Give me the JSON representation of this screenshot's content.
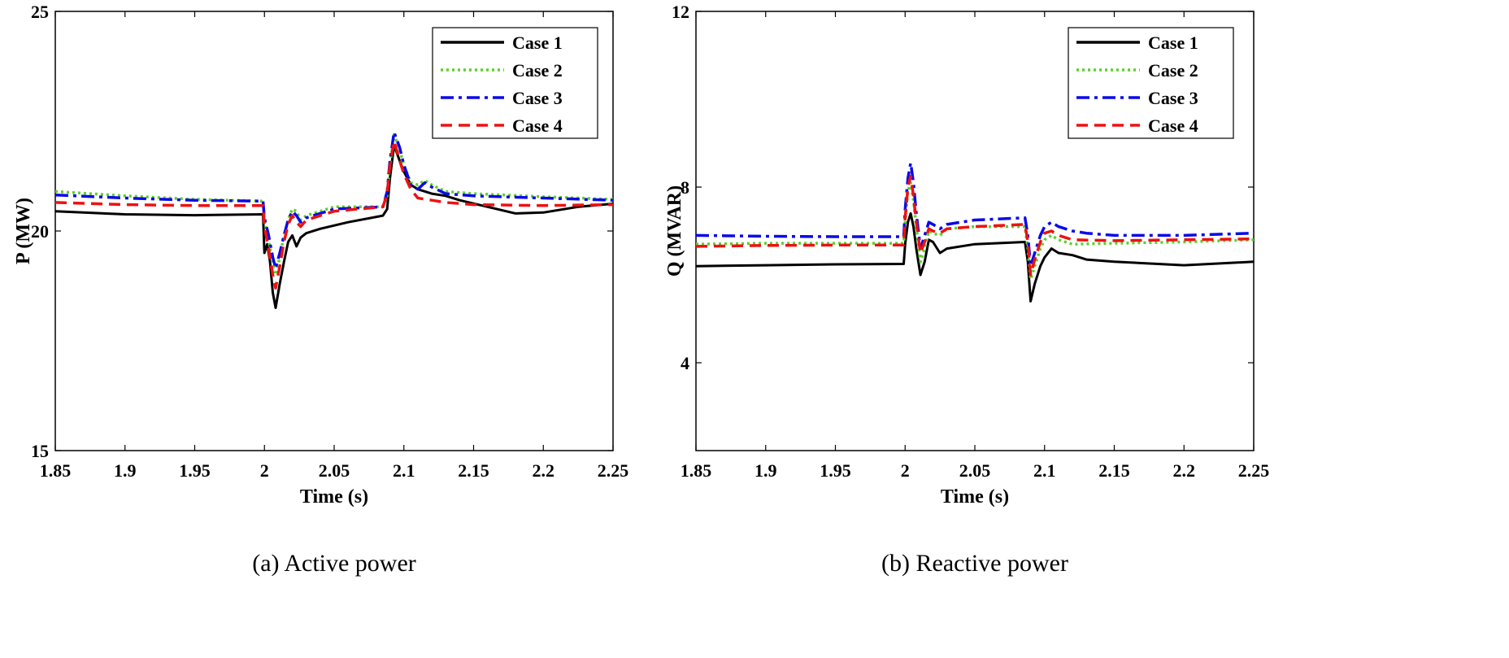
{
  "chart_data": [
    {
      "type": "line",
      "caption": "(a) Active power",
      "xlabel": "Time (s)",
      "ylabel": "P (MW)",
      "xlim": [
        1.85,
        2.25
      ],
      "ylim": [
        15,
        25
      ],
      "xticks": [
        1.85,
        1.9,
        1.95,
        2,
        2.05,
        2.1,
        2.15,
        2.2,
        2.25
      ],
      "xtick_labels": [
        "1.85",
        "1.9",
        "1.95",
        "2",
        "2.05",
        "2.1",
        "2.15",
        "2.2",
        "2.25"
      ],
      "yticks": [
        15,
        20,
        25
      ],
      "ytick_labels": [
        "15",
        "20",
        "25"
      ],
      "legend": "top-right",
      "series": [
        {
          "name": "Case 1",
          "color": "#000000",
          "style": "solid",
          "points": [
            [
              1.85,
              20.45
            ],
            [
              1.9,
              20.38
            ],
            [
              1.95,
              20.36
            ],
            [
              1.999,
              20.38
            ],
            [
              2.0,
              19.5
            ],
            [
              2.002,
              19.7
            ],
            [
              2.004,
              19.3
            ],
            [
              2.006,
              18.6
            ],
            [
              2.008,
              18.25
            ],
            [
              2.011,
              18.8
            ],
            [
              2.014,
              19.3
            ],
            [
              2.017,
              19.75
            ],
            [
              2.02,
              19.9
            ],
            [
              2.023,
              19.65
            ],
            [
              2.026,
              19.85
            ],
            [
              2.03,
              19.95
            ],
            [
              2.04,
              20.05
            ],
            [
              2.06,
              20.2
            ],
            [
              2.085,
              20.35
            ],
            [
              2.088,
              20.5
            ],
            [
              2.09,
              21.2
            ],
            [
              2.093,
              21.95
            ],
            [
              2.097,
              21.6
            ],
            [
              2.1,
              21.35
            ],
            [
              2.105,
              21.05
            ],
            [
              2.11,
              20.95
            ],
            [
              2.12,
              20.85
            ],
            [
              2.13,
              20.8
            ],
            [
              2.14,
              20.7
            ],
            [
              2.16,
              20.55
            ],
            [
              2.18,
              20.4
            ],
            [
              2.2,
              20.42
            ],
            [
              2.225,
              20.55
            ],
            [
              2.25,
              20.62
            ]
          ]
        },
        {
          "name": "Case 2",
          "color": "#5cd02a",
          "style": "dotted",
          "points": [
            [
              1.85,
              20.9
            ],
            [
              1.9,
              20.8
            ],
            [
              1.95,
              20.72
            ],
            [
              1.999,
              20.68
            ],
            [
              2.0,
              20.25
            ],
            [
              2.003,
              19.8
            ],
            [
              2.006,
              19.25
            ],
            [
              2.008,
              19.0
            ],
            [
              2.011,
              19.4
            ],
            [
              2.014,
              19.9
            ],
            [
              2.017,
              20.25
            ],
            [
              2.02,
              20.5
            ],
            [
              2.023,
              20.45
            ],
            [
              2.026,
              20.25
            ],
            [
              2.03,
              20.35
            ],
            [
              2.05,
              20.55
            ],
            [
              2.085,
              20.55
            ],
            [
              2.088,
              20.8
            ],
            [
              2.09,
              21.5
            ],
            [
              2.093,
              22.2
            ],
            [
              2.097,
              21.85
            ],
            [
              2.1,
              21.5
            ],
            [
              2.105,
              21.1
            ],
            [
              2.11,
              21.05
            ],
            [
              2.115,
              21.15
            ],
            [
              2.12,
              21.05
            ],
            [
              2.13,
              20.9
            ],
            [
              2.15,
              20.85
            ],
            [
              2.2,
              20.78
            ],
            [
              2.25,
              20.72
            ]
          ]
        },
        {
          "name": "Case 3",
          "color": "#0a0ae8",
          "style": "dashdot",
          "points": [
            [
              1.85,
              20.82
            ],
            [
              1.9,
              20.75
            ],
            [
              1.95,
              20.7
            ],
            [
              1.999,
              20.68
            ],
            [
              2.0,
              20.3
            ],
            [
              2.003,
              19.9
            ],
            [
              2.006,
              19.4
            ],
            [
              2.008,
              19.15
            ],
            [
              2.011,
              19.5
            ],
            [
              2.014,
              19.9
            ],
            [
              2.017,
              20.25
            ],
            [
              2.02,
              20.45
            ],
            [
              2.023,
              20.35
            ],
            [
              2.026,
              20.2
            ],
            [
              2.03,
              20.3
            ],
            [
              2.05,
              20.5
            ],
            [
              2.085,
              20.55
            ],
            [
              2.088,
              20.9
            ],
            [
              2.09,
              21.6
            ],
            [
              2.093,
              22.25
            ],
            [
              2.097,
              21.9
            ],
            [
              2.1,
              21.5
            ],
            [
              2.105,
              21.05
            ],
            [
              2.11,
              20.95
            ],
            [
              2.115,
              21.1
            ],
            [
              2.12,
              21.0
            ],
            [
              2.13,
              20.85
            ],
            [
              2.15,
              20.8
            ],
            [
              2.2,
              20.75
            ],
            [
              2.25,
              20.7
            ]
          ]
        },
        {
          "name": "Case 4",
          "color": "#ee1111",
          "style": "dashed",
          "points": [
            [
              1.85,
              20.65
            ],
            [
              1.9,
              20.6
            ],
            [
              1.95,
              20.58
            ],
            [
              1.999,
              20.58
            ],
            [
              2.0,
              20.1
            ],
            [
              2.003,
              19.6
            ],
            [
              2.006,
              19.0
            ],
            [
              2.008,
              18.7
            ],
            [
              2.011,
              19.2
            ],
            [
              2.014,
              19.75
            ],
            [
              2.017,
              20.15
            ],
            [
              2.02,
              20.35
            ],
            [
              2.023,
              20.2
            ],
            [
              2.026,
              20.1
            ],
            [
              2.03,
              20.25
            ],
            [
              2.05,
              20.45
            ],
            [
              2.085,
              20.55
            ],
            [
              2.088,
              20.85
            ],
            [
              2.09,
              21.5
            ],
            [
              2.093,
              22.05
            ],
            [
              2.097,
              21.6
            ],
            [
              2.1,
              21.3
            ],
            [
              2.105,
              20.95
            ],
            [
              2.11,
              20.75
            ],
            [
              2.12,
              20.7
            ],
            [
              2.13,
              20.65
            ],
            [
              2.15,
              20.6
            ],
            [
              2.2,
              20.58
            ],
            [
              2.25,
              20.6
            ]
          ]
        }
      ]
    },
    {
      "type": "line",
      "caption": "(b) Reactive power",
      "xlabel": "Time (s)",
      "ylabel": "Q (MVAR)",
      "xlim": [
        1.85,
        2.25
      ],
      "ylim": [
        2,
        12
      ],
      "xticks": [
        1.85,
        1.9,
        1.95,
        2,
        2.05,
        2.1,
        2.15,
        2.2,
        2.25
      ],
      "xtick_labels": [
        "1.85",
        "1.9",
        "1.95",
        "2",
        "2.05",
        "2.1",
        "2.15",
        "2.2",
        "2.25"
      ],
      "yticks": [
        4,
        8,
        12
      ],
      "ytick_labels": [
        "4",
        "8",
        "12"
      ],
      "legend": "top-right",
      "series": [
        {
          "name": "Case 1",
          "color": "#000000",
          "style": "solid",
          "points": [
            [
              1.85,
              6.2
            ],
            [
              1.9,
              6.22
            ],
            [
              1.95,
              6.24
            ],
            [
              1.999,
              6.25
            ],
            [
              2.0,
              6.7
            ],
            [
              2.002,
              7.2
            ],
            [
              2.004,
              7.4
            ],
            [
              2.006,
              7.1
            ],
            [
              2.008,
              6.6
            ],
            [
              2.011,
              6.0
            ],
            [
              2.014,
              6.3
            ],
            [
              2.017,
              6.8
            ],
            [
              2.02,
              6.75
            ],
            [
              2.025,
              6.5
            ],
            [
              2.03,
              6.6
            ],
            [
              2.05,
              6.7
            ],
            [
              2.086,
              6.75
            ],
            [
              2.088,
              6.3
            ],
            [
              2.09,
              5.4
            ],
            [
              2.093,
              5.8
            ],
            [
              2.097,
              6.2
            ],
            [
              2.1,
              6.4
            ],
            [
              2.105,
              6.6
            ],
            [
              2.11,
              6.5
            ],
            [
              2.12,
              6.45
            ],
            [
              2.13,
              6.35
            ],
            [
              2.15,
              6.3
            ],
            [
              2.2,
              6.22
            ],
            [
              2.25,
              6.3
            ]
          ]
        },
        {
          "name": "Case 2",
          "color": "#5cd02a",
          "style": "dotted",
          "points": [
            [
              1.85,
              6.7
            ],
            [
              1.9,
              6.72
            ],
            [
              1.95,
              6.72
            ],
            [
              1.999,
              6.72
            ],
            [
              2.0,
              7.2
            ],
            [
              2.002,
              7.9
            ],
            [
              2.004,
              8.1
            ],
            [
              2.006,
              7.7
            ],
            [
              2.008,
              7.1
            ],
            [
              2.011,
              6.3
            ],
            [
              2.014,
              6.6
            ],
            [
              2.017,
              7.0
            ],
            [
              2.02,
              6.95
            ],
            [
              2.025,
              6.9
            ],
            [
              2.03,
              7.05
            ],
            [
              2.05,
              7.1
            ],
            [
              2.086,
              7.1
            ],
            [
              2.088,
              6.6
            ],
            [
              2.09,
              5.9
            ],
            [
              2.093,
              6.2
            ],
            [
              2.097,
              6.6
            ],
            [
              2.1,
              6.8
            ],
            [
              2.105,
              6.9
            ],
            [
              2.11,
              6.8
            ],
            [
              2.12,
              6.7
            ],
            [
              2.15,
              6.72
            ],
            [
              2.2,
              6.75
            ],
            [
              2.25,
              6.8
            ]
          ]
        },
        {
          "name": "Case 3",
          "color": "#0a0ae8",
          "style": "dashdot",
          "points": [
            [
              1.85,
              6.9
            ],
            [
              1.9,
              6.88
            ],
            [
              1.95,
              6.87
            ],
            [
              1.999,
              6.87
            ],
            [
              2.0,
              7.5
            ],
            [
              2.002,
              8.2
            ],
            [
              2.004,
              8.55
            ],
            [
              2.006,
              8.1
            ],
            [
              2.008,
              7.4
            ],
            [
              2.011,
              6.6
            ],
            [
              2.014,
              6.9
            ],
            [
              2.017,
              7.2
            ],
            [
              2.02,
              7.15
            ],
            [
              2.025,
              7.05
            ],
            [
              2.03,
              7.15
            ],
            [
              2.05,
              7.25
            ],
            [
              2.086,
              7.3
            ],
            [
              2.088,
              6.9
            ],
            [
              2.09,
              6.2
            ],
            [
              2.093,
              6.5
            ],
            [
              2.097,
              6.9
            ],
            [
              2.1,
              7.1
            ],
            [
              2.105,
              7.2
            ],
            [
              2.11,
              7.1
            ],
            [
              2.12,
              7.0
            ],
            [
              2.13,
              6.95
            ],
            [
              2.15,
              6.9
            ],
            [
              2.2,
              6.9
            ],
            [
              2.25,
              6.95
            ]
          ]
        },
        {
          "name": "Case 4",
          "color": "#ee1111",
          "style": "dashed",
          "points": [
            [
              1.85,
              6.65
            ],
            [
              1.9,
              6.67
            ],
            [
              1.95,
              6.68
            ],
            [
              1.999,
              6.68
            ],
            [
              2.0,
              7.3
            ],
            [
              2.002,
              8.0
            ],
            [
              2.004,
              8.25
            ],
            [
              2.006,
              7.8
            ],
            [
              2.008,
              7.2
            ],
            [
              2.011,
              6.5
            ],
            [
              2.014,
              6.75
            ],
            [
              2.017,
              7.05
            ],
            [
              2.02,
              7.0
            ],
            [
              2.025,
              6.95
            ],
            [
              2.03,
              7.05
            ],
            [
              2.05,
              7.1
            ],
            [
              2.086,
              7.15
            ],
            [
              2.088,
              6.75
            ],
            [
              2.09,
              6.0
            ],
            [
              2.093,
              6.35
            ],
            [
              2.097,
              6.75
            ],
            [
              2.1,
              6.95
            ],
            [
              2.105,
              7.0
            ],
            [
              2.11,
              6.9
            ],
            [
              2.12,
              6.8
            ],
            [
              2.15,
              6.78
            ],
            [
              2.2,
              6.8
            ],
            [
              2.25,
              6.82
            ]
          ]
        }
      ]
    }
  ]
}
